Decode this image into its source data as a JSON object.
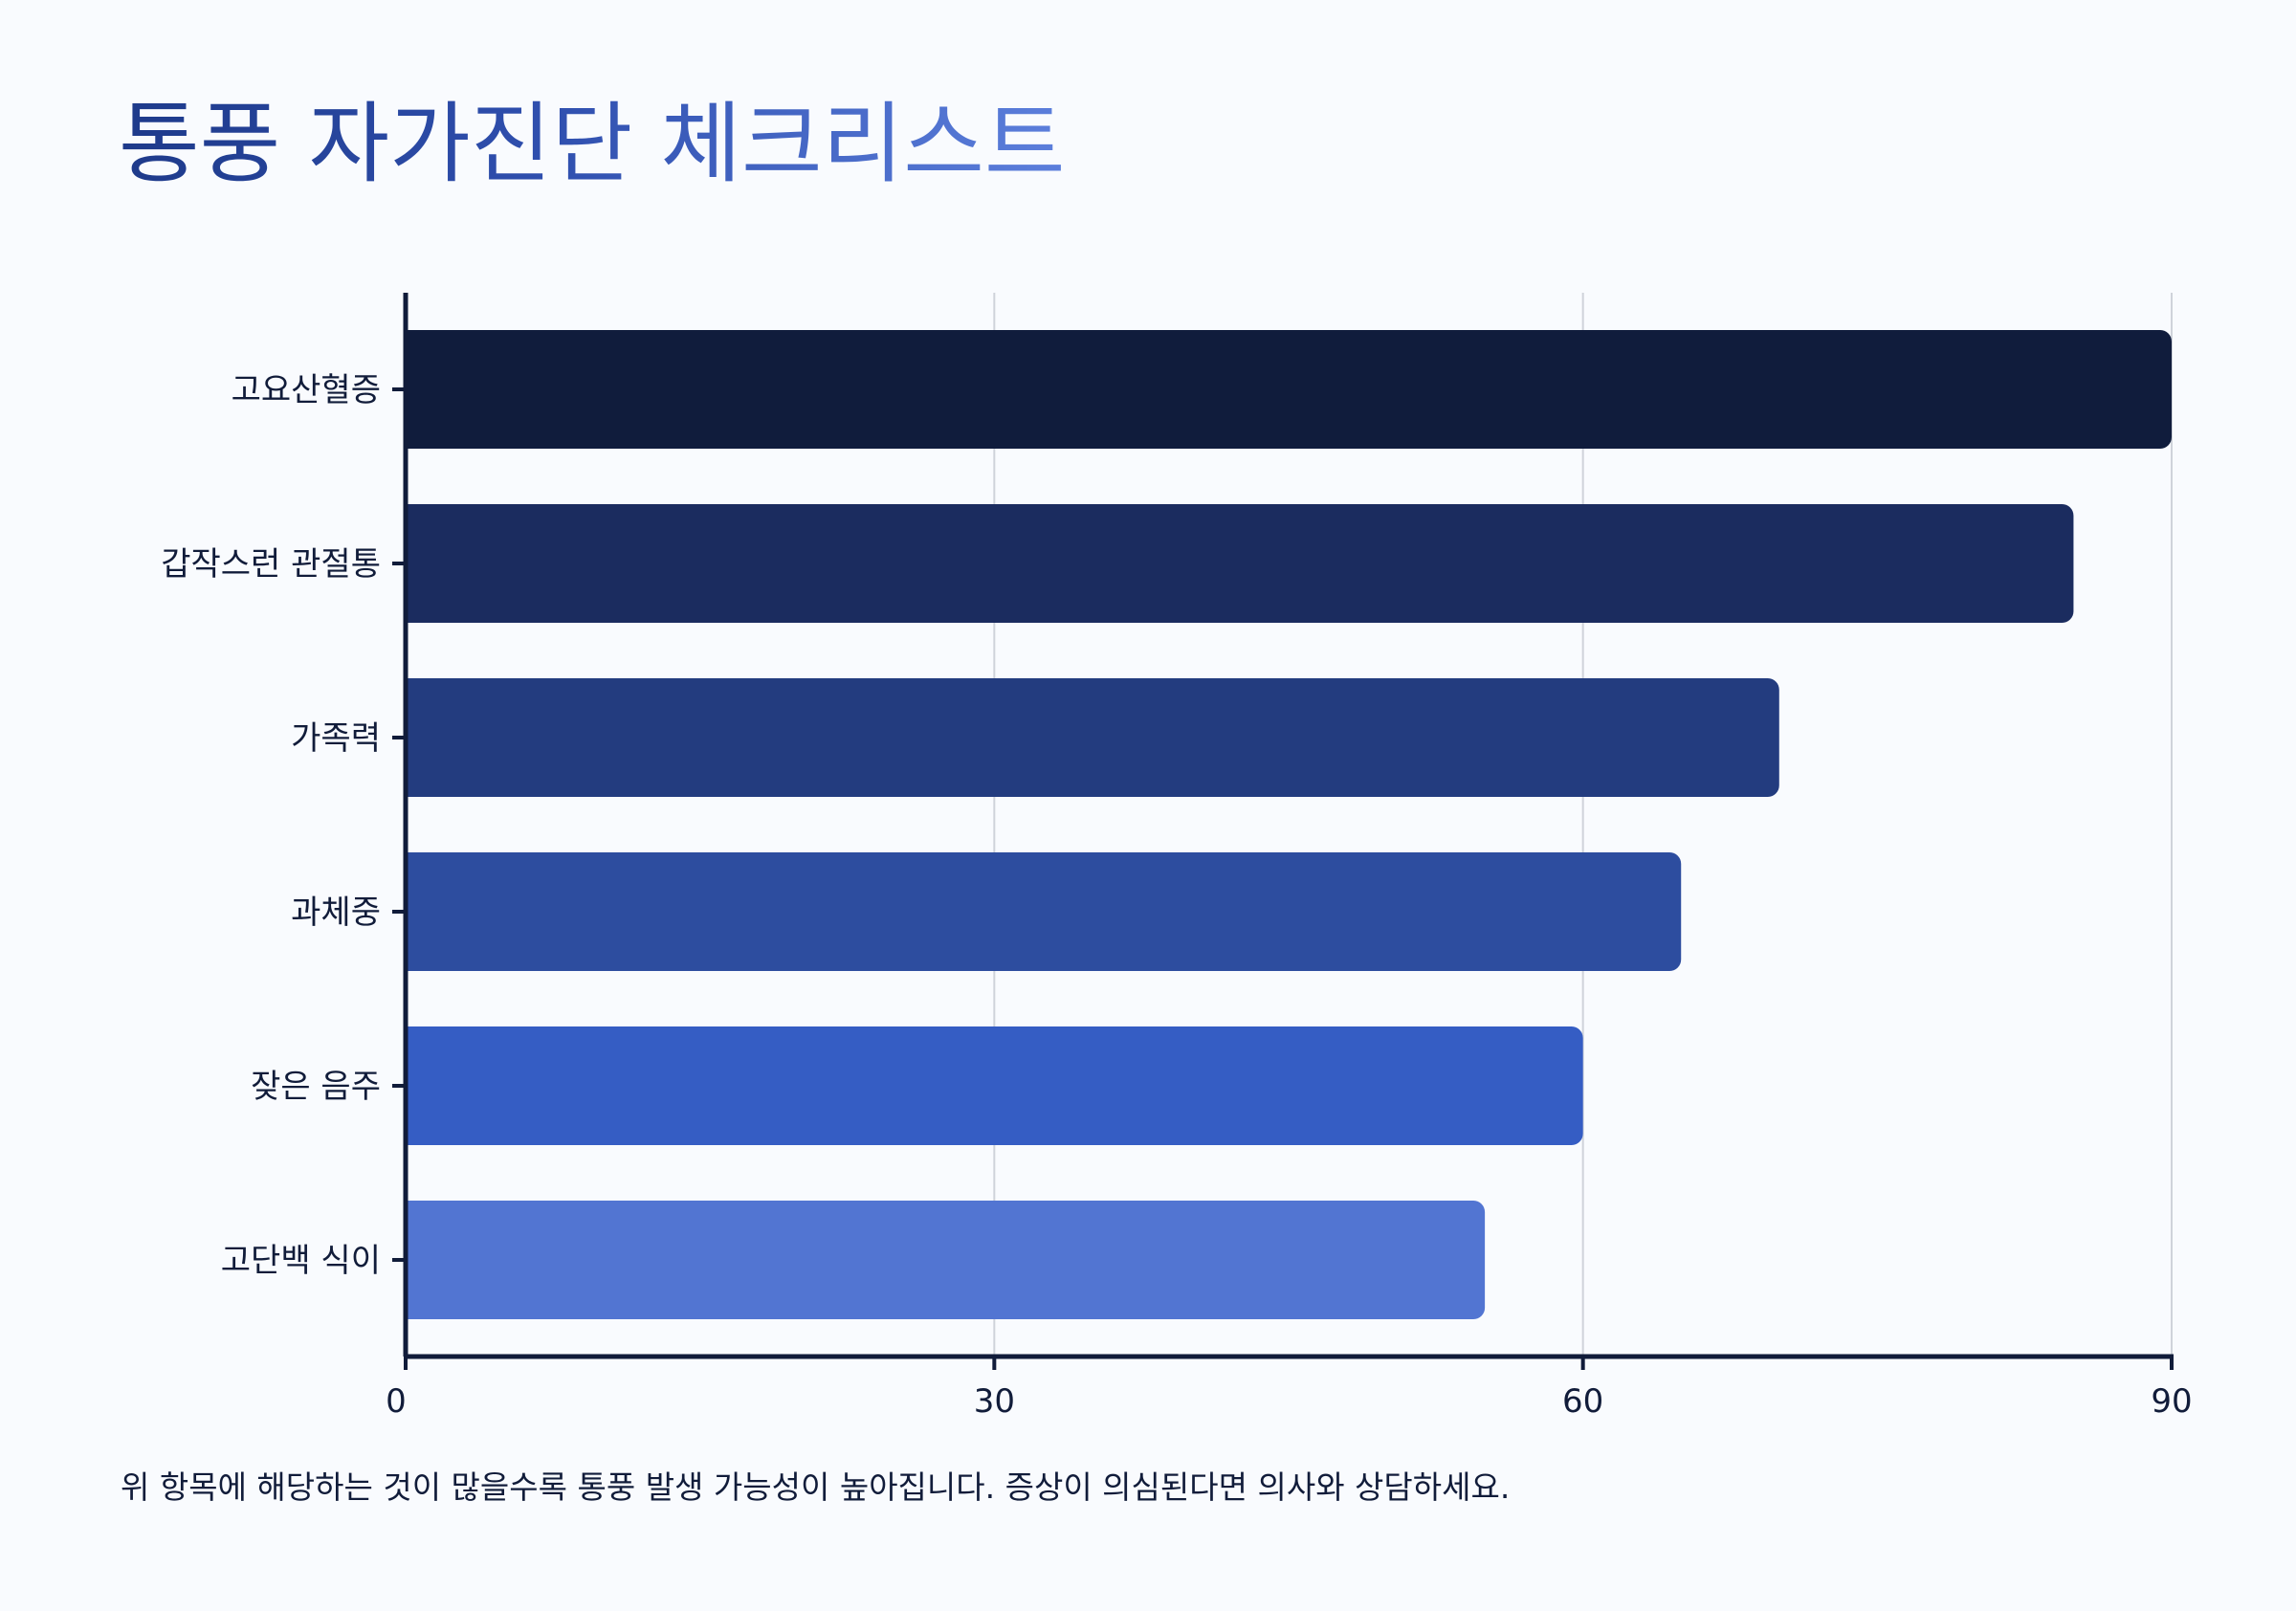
{
  "page": {
    "title": "통풍 자가진단 체크리스트",
    "footnote": "위 항목에 해당하는 것이 많을수록 통풍 발생 가능성이 높아집니다. 증상이 의심된다면 의사와 상담하세요."
  },
  "colors": {
    "background": "#f9fbfe",
    "axis": "#111c3a",
    "grid": "#cfd3da",
    "bars": [
      "#101c3c",
      "#1b2c5f",
      "#233c7f",
      "#2d4d9f",
      "#355dc4",
      "#5275d2"
    ]
  },
  "chart_data": {
    "type": "bar",
    "orientation": "horizontal",
    "categories": [
      "고요산혈증",
      "갑작스런 관절통",
      "가족력",
      "과체중",
      "잦은 음주",
      "고단백 식이"
    ],
    "values": [
      90,
      85,
      70,
      65,
      60,
      55
    ],
    "xlim": [
      0,
      90
    ],
    "xticks": [
      "0",
      "30",
      "60",
      "90"
    ],
    "xtick_values": [
      0,
      30,
      60,
      90
    ],
    "grid": "vertical",
    "legend": "none"
  }
}
